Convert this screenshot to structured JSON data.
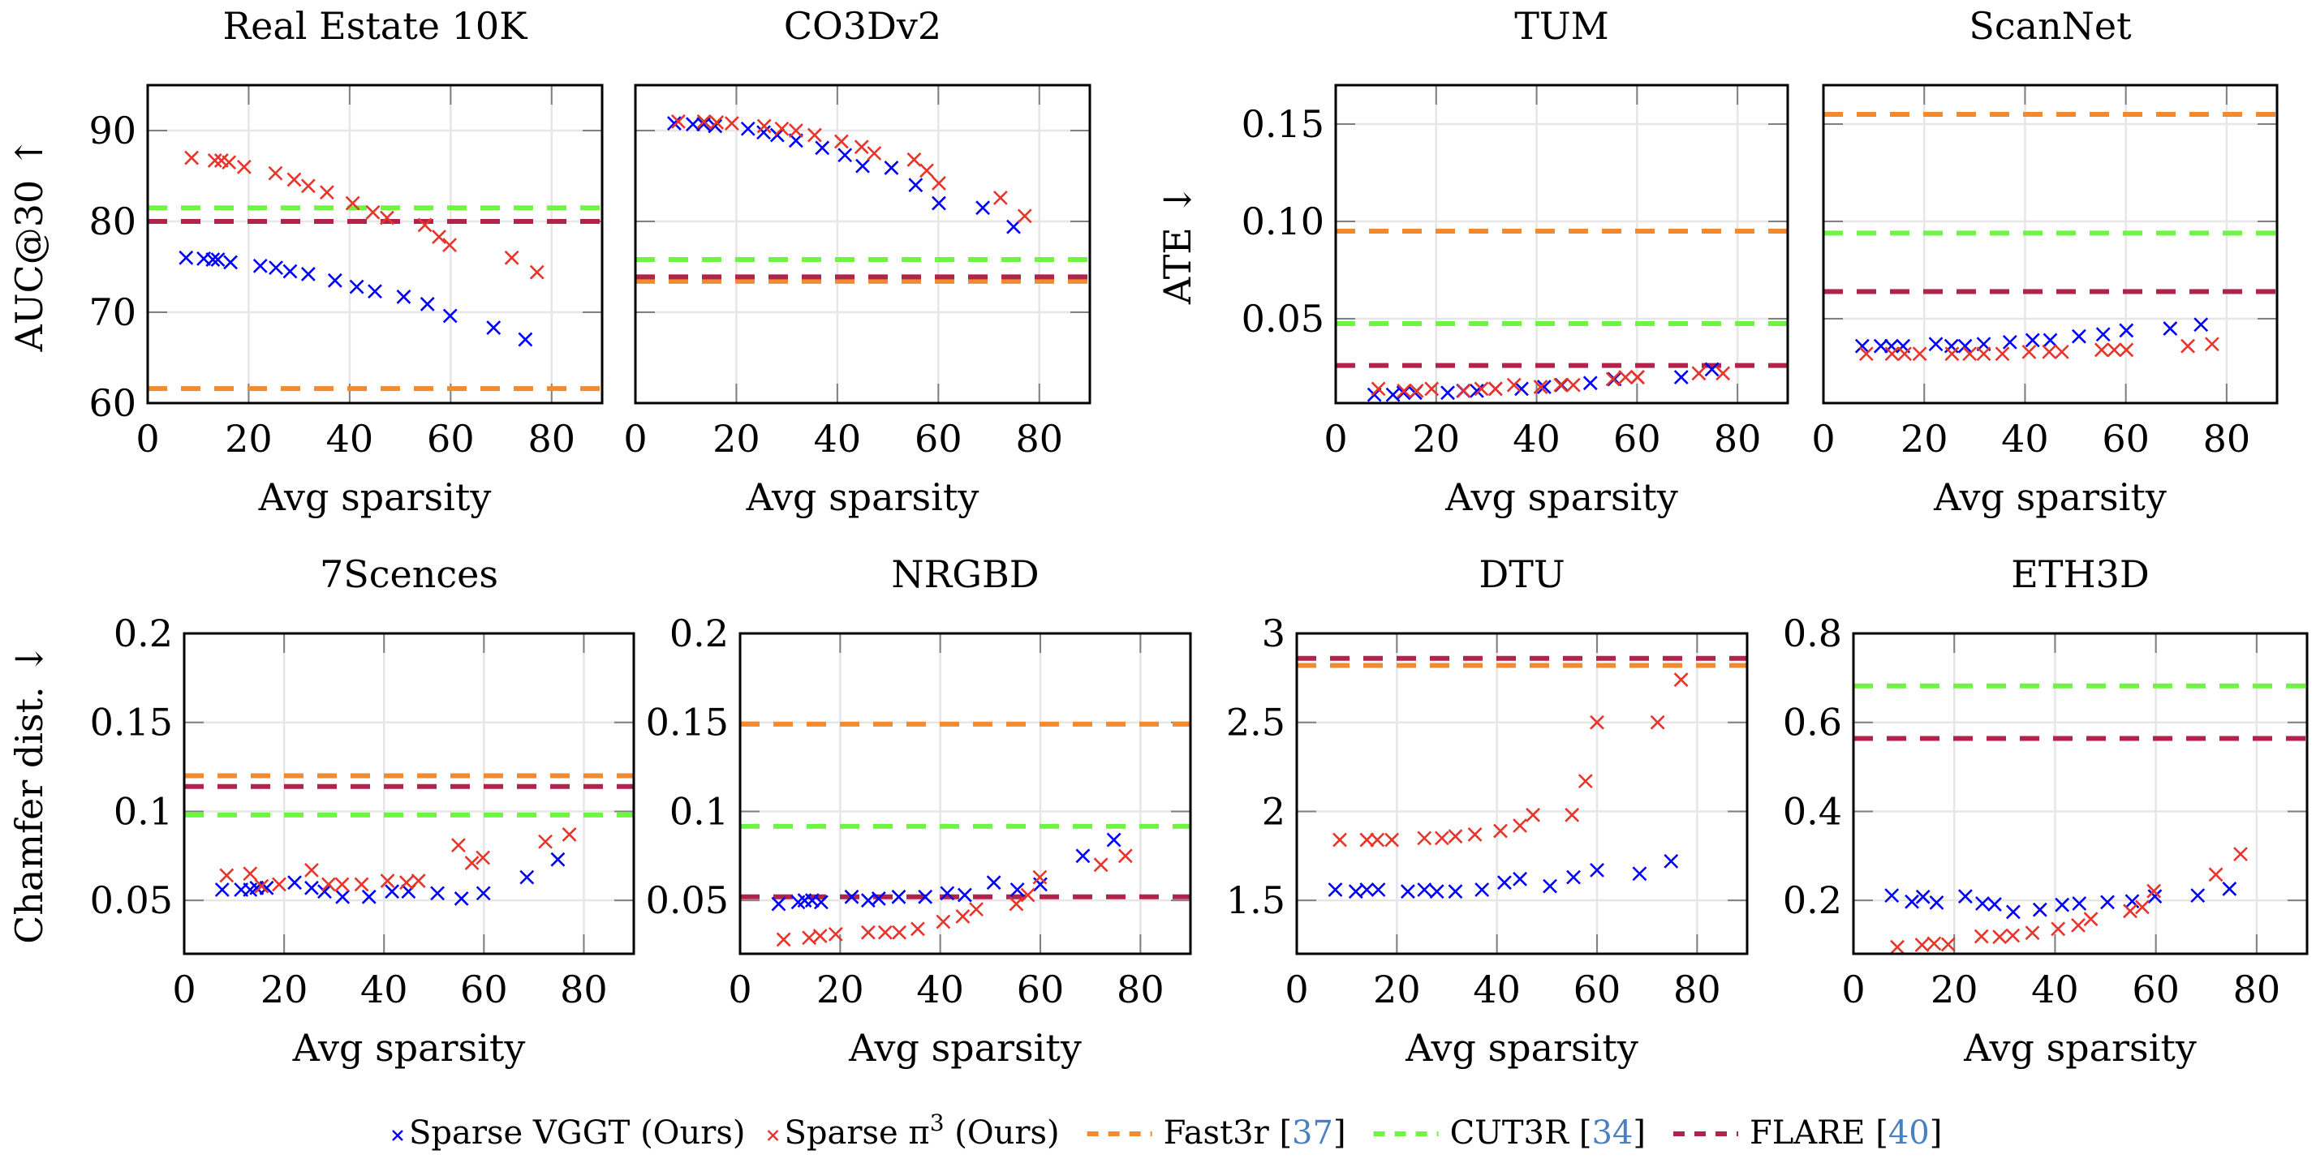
{
  "figure": {
    "legend": [
      {
        "label": "Sparse VGGT (Ours)",
        "kind": "marker",
        "color": "#0000ff",
        "series": "vggt"
      },
      {
        "label": "Sparse π",
        "sup": "3",
        "suffix": " (Ours)",
        "kind": "marker",
        "color": "#e8342a",
        "series": "pi3"
      },
      {
        "label": "Fast3r ",
        "cite": "37",
        "kind": "dash",
        "color": "#f28a30",
        "series": "fast3r"
      },
      {
        "label": "CUT3R ",
        "cite": "34",
        "kind": "dash",
        "color": "#6ef542",
        "series": "cut3r"
      },
      {
        "label": "FLARE ",
        "cite": "40",
        "kind": "dash",
        "color": "#b0234a",
        "series": "flare"
      }
    ],
    "colors": {
      "vggt": "#0000ff",
      "pi3": "#e8342a",
      "fast3r": "#f28a30",
      "cut3r": "#6ef542",
      "flare": "#b0234a"
    }
  },
  "chart_data": [
    {
      "type": "scatter",
      "title": "Real Estate 10K",
      "xlabel": "Avg sparsity",
      "ylabel": "AUC@30 ↑",
      "xlim": [
        0,
        90
      ],
      "ylim": [
        60,
        95
      ],
      "xticks": [
        0,
        20,
        40,
        60,
        80
      ],
      "yticks": [
        60,
        70,
        80,
        90
      ],
      "ytick_labels": [
        "60",
        "70",
        "80",
        "90"
      ],
      "grid": true,
      "series": [
        {
          "name": "Sparse VGGT (Ours)",
          "key": "vggt",
          "x": [
            7.6,
            11.1,
            12.9,
            13.9,
            16.4,
            22.3,
            25.4,
            28.2,
            31.8,
            37.1,
            41.4,
            45.0,
            50.7,
            55.4,
            59.9,
            68.5,
            74.8
          ],
          "y": [
            76.0,
            75.9,
            75.8,
            75.8,
            75.5,
            75.1,
            74.9,
            74.5,
            74.2,
            73.5,
            72.8,
            72.3,
            71.7,
            70.9,
            69.6,
            68.3,
            67.0
          ]
        },
        {
          "name": "Sparse π³ (Ours)",
          "key": "pi3",
          "x": [
            8.7,
            13.3,
            14.6,
            16.1,
            19.1,
            25.3,
            29.0,
            31.8,
            35.5,
            40.6,
            44.6,
            47.4,
            54.9,
            57.7,
            59.8,
            72.1,
            77.1
          ],
          "y": [
            87.0,
            86.7,
            86.7,
            86.5,
            86.0,
            85.3,
            84.6,
            83.9,
            83.2,
            82.0,
            81.0,
            80.4,
            79.6,
            78.3,
            77.4,
            76.0,
            74.4
          ]
        }
      ],
      "baselines": [
        {
          "name": "Fast3r [37]",
          "key": "fast3r",
          "y": 61.6
        },
        {
          "name": "CUT3R [34]",
          "key": "cut3r",
          "y": 81.5
        },
        {
          "name": "FLARE [40]",
          "key": "flare",
          "y": 80.0
        }
      ]
    },
    {
      "type": "scatter",
      "title": "CO3Dv2",
      "xlabel": "Avg sparsity",
      "ylabel": "",
      "xlim": [
        0,
        90
      ],
      "ylim": [
        60,
        95
      ],
      "xticks": [
        0,
        20,
        40,
        60,
        80
      ],
      "yticks": [
        60,
        70,
        80,
        90
      ],
      "ytick_labels": [],
      "grid": true,
      "series": [
        {
          "name": "Sparse VGGT (Ours)",
          "key": "vggt",
          "x": [
            7.7,
            11.4,
            13.5,
            15.8,
            22.3,
            25.4,
            28.1,
            31.8,
            37.0,
            41.5,
            45.0,
            50.7,
            55.5,
            60.1,
            68.8,
            74.9
          ],
          "y": [
            90.8,
            90.7,
            90.7,
            90.5,
            90.2,
            89.8,
            89.5,
            88.9,
            88.1,
            87.3,
            86.1,
            85.9,
            84.0,
            82.0,
            81.5,
            79.4
          ]
        },
        {
          "name": "Sparse π³ (Ours)",
          "key": "pi3",
          "x": [
            8.5,
            13.6,
            16.1,
            19.1,
            25.5,
            29.0,
            31.8,
            35.5,
            40.8,
            44.8,
            47.3,
            55.2,
            57.7,
            60.1,
            72.3,
            77.1
          ],
          "y": [
            91.0,
            91.0,
            90.9,
            90.8,
            90.5,
            90.2,
            90.0,
            89.5,
            88.8,
            88.2,
            87.5,
            86.8,
            85.6,
            84.2,
            82.6,
            80.6
          ]
        }
      ],
      "baselines": [
        {
          "name": "Fast3r [37]",
          "key": "fast3r",
          "y": 73.4
        },
        {
          "name": "CUT3R [34]",
          "key": "cut3r",
          "y": 75.8
        },
        {
          "name": "FLARE [40]",
          "key": "flare",
          "y": 73.9
        }
      ]
    },
    {
      "type": "scatter",
      "title": "TUM",
      "xlabel": "Avg sparsity",
      "ylabel": "ATE ↓",
      "xlim": [
        0,
        90
      ],
      "ylim": [
        0.0067,
        0.17
      ],
      "xticks": [
        0,
        20,
        40,
        60,
        80
      ],
      "yticks": [
        0.05,
        0.1,
        0.15
      ],
      "ytick_labels": [
        "0.05",
        "0.10",
        "0.15"
      ],
      "grid": true,
      "series": [
        {
          "name": "Sparse VGGT (Ours)",
          "key": "vggt",
          "x": [
            7.7,
            11.4,
            13.5,
            15.8,
            22.3,
            25.4,
            28.1,
            31.8,
            37.0,
            41.5,
            45.0,
            50.7,
            55.5,
            60.1,
            68.8,
            74.9
          ],
          "y": [
            0.011,
            0.011,
            0.012,
            0.012,
            0.012,
            0.013,
            0.013,
            0.014,
            0.014,
            0.015,
            0.016,
            0.017,
            0.019,
            0.02,
            0.02,
            0.024
          ]
        },
        {
          "name": "Sparse π³ (Ours)",
          "key": "pi3",
          "x": [
            8.5,
            13.6,
            16.1,
            19.1,
            25.5,
            29.0,
            31.8,
            35.5,
            40.8,
            44.8,
            47.3,
            55.2,
            57.7,
            60.1,
            72.3,
            77.1
          ],
          "y": [
            0.014,
            0.013,
            0.013,
            0.014,
            0.013,
            0.014,
            0.014,
            0.016,
            0.015,
            0.016,
            0.016,
            0.019,
            0.02,
            0.02,
            0.022,
            0.022
          ]
        }
      ],
      "baselines": [
        {
          "name": "Fast3r [37]",
          "key": "fast3r",
          "y": 0.095
        },
        {
          "name": "CUT3R [34]",
          "key": "cut3r",
          "y": 0.0475
        },
        {
          "name": "FLARE [40]",
          "key": "flare",
          "y": 0.026
        }
      ]
    },
    {
      "type": "scatter",
      "title": "ScanNet",
      "xlabel": "Avg sparsity",
      "ylabel": "",
      "xlim": [
        0,
        90
      ],
      "ylim": [
        0.0067,
        0.17
      ],
      "xticks": [
        0,
        20,
        40,
        60,
        80
      ],
      "yticks": [
        0.05,
        0.1,
        0.15
      ],
      "ytick_labels": [],
      "grid": true,
      "series": [
        {
          "name": "Sparse VGGT (Ours)",
          "key": "vggt",
          "x": [
            7.7,
            11.4,
            13.5,
            15.8,
            22.3,
            25.4,
            28.1,
            31.8,
            37.0,
            41.5,
            45.0,
            50.7,
            55.5,
            60.1,
            68.8,
            74.9
          ],
          "y": [
            0.036,
            0.036,
            0.036,
            0.036,
            0.037,
            0.036,
            0.036,
            0.037,
            0.038,
            0.039,
            0.039,
            0.041,
            0.042,
            0.044,
            0.045,
            0.047
          ]
        },
        {
          "name": "Sparse π³ (Ours)",
          "key": "pi3",
          "x": [
            8.5,
            13.6,
            16.1,
            19.1,
            25.5,
            29.0,
            31.8,
            35.5,
            40.8,
            44.8,
            47.3,
            55.2,
            57.7,
            60.1,
            72.3,
            77.1
          ],
          "y": [
            0.032,
            0.032,
            0.032,
            0.032,
            0.032,
            0.032,
            0.032,
            0.032,
            0.033,
            0.033,
            0.033,
            0.034,
            0.034,
            0.034,
            0.036,
            0.037
          ]
        }
      ],
      "baselines": [
        {
          "name": "Fast3r [37]",
          "key": "fast3r",
          "y": 0.155
        },
        {
          "name": "CUT3R [34]",
          "key": "cut3r",
          "y": 0.094
        },
        {
          "name": "FLARE [40]",
          "key": "flare",
          "y": 0.064
        }
      ]
    },
    {
      "type": "scatter",
      "title": "7Scences",
      "xlabel": "Avg sparsity",
      "ylabel": "Chamfer dist. ↓",
      "xlim": [
        0,
        90
      ],
      "ylim": [
        0.02,
        0.2
      ],
      "xticks": [
        0,
        20,
        40,
        60,
        80
      ],
      "yticks": [
        0.05,
        0.1,
        0.15,
        0.2
      ],
      "ytick_labels": [
        "0.05",
        "0.1",
        "0.15",
        "0.2"
      ],
      "grid": true,
      "series": [
        {
          "name": "Sparse VGGT (Ours)",
          "key": "vggt",
          "x": [
            7.6,
            11.4,
            13.2,
            14.5,
            16.5,
            22.1,
            25.5,
            28.1,
            31.7,
            37.0,
            41.6,
            44.9,
            50.7,
            55.5,
            59.9,
            68.6,
            74.8
          ],
          "y": [
            0.056,
            0.056,
            0.056,
            0.057,
            0.057,
            0.06,
            0.057,
            0.055,
            0.052,
            0.052,
            0.055,
            0.055,
            0.054,
            0.051,
            0.054,
            0.063,
            0.073
          ]
        },
        {
          "name": "Sparse π³ (Ours)",
          "key": "pi3",
          "x": [
            8.5,
            13.2,
            15.5,
            19.0,
            25.5,
            28.9,
            31.6,
            35.5,
            40.7,
            44.5,
            46.9,
            54.9,
            57.6,
            59.8,
            72.3,
            77.1
          ],
          "y": [
            0.064,
            0.065,
            0.058,
            0.059,
            0.067,
            0.059,
            0.059,
            0.059,
            0.061,
            0.06,
            0.061,
            0.081,
            0.071,
            0.074,
            0.083,
            0.087
          ]
        }
      ],
      "baselines": [
        {
          "name": "Fast3r [37]",
          "key": "fast3r",
          "y": 0.12
        },
        {
          "name": "CUT3R [34]",
          "key": "cut3r",
          "y": 0.098
        },
        {
          "name": "FLARE [40]",
          "key": "flare",
          "y": 0.114
        }
      ]
    },
    {
      "type": "scatter",
      "title": "NRGBD",
      "xlabel": "Avg sparsity",
      "ylabel": "",
      "xlim": [
        0,
        90
      ],
      "ylim": [
        0.02,
        0.2
      ],
      "xticks": [
        0,
        20,
        40,
        60,
        80
      ],
      "yticks": [
        0.05,
        0.1,
        0.15,
        0.2
      ],
      "ytick_labels": [
        "0.05",
        "0.1",
        "0.15",
        "0.2"
      ],
      "grid": true,
      "series": [
        {
          "name": "Sparse VGGT (Ours)",
          "key": "vggt",
          "x": [
            7.7,
            11.6,
            12.9,
            14.4,
            16.2,
            22.3,
            25.6,
            27.7,
            31.7,
            37.0,
            41.4,
            44.9,
            50.7,
            55.4,
            60.0,
            68.5,
            74.7
          ],
          "y": [
            0.048,
            0.049,
            0.05,
            0.05,
            0.049,
            0.052,
            0.05,
            0.051,
            0.052,
            0.052,
            0.054,
            0.053,
            0.06,
            0.056,
            0.059,
            0.075,
            0.084
          ]
        },
        {
          "name": "Sparse π³ (Ours)",
          "key": "pi3",
          "x": [
            8.7,
            13.8,
            16.0,
            19.1,
            25.6,
            29.0,
            31.8,
            35.5,
            40.6,
            44.5,
            47.2,
            55.2,
            57.5,
            59.9,
            72.1,
            77.0
          ],
          "y": [
            0.028,
            0.029,
            0.03,
            0.031,
            0.032,
            0.032,
            0.032,
            0.034,
            0.038,
            0.041,
            0.045,
            0.048,
            0.053,
            0.063,
            0.07,
            0.075
          ]
        }
      ],
      "baselines": [
        {
          "name": "Fast3r [37]",
          "key": "fast3r",
          "y": 0.149
        },
        {
          "name": "CUT3R [34]",
          "key": "cut3r",
          "y": 0.0916
        },
        {
          "name": "FLARE [40]",
          "key": "flare",
          "y": 0.052
        }
      ]
    },
    {
      "type": "scatter",
      "title": "DTU",
      "xlabel": "Avg sparsity",
      "ylabel": "",
      "xlim": [
        0,
        90
      ],
      "ylim": [
        1.2,
        3.0
      ],
      "xticks": [
        0,
        20,
        40,
        60,
        80
      ],
      "yticks": [
        1.5,
        2,
        2.5,
        3
      ],
      "ytick_labels": [
        "1.5",
        "2",
        "2.5",
        "3"
      ],
      "grid": true,
      "series": [
        {
          "name": "Sparse VGGT (Ours)",
          "key": "vggt",
          "x": [
            7.7,
            11.8,
            14.0,
            16.3,
            22.2,
            25.5,
            28.0,
            31.7,
            37.0,
            41.5,
            44.6,
            50.6,
            55.3,
            60.0,
            68.5,
            74.8
          ],
          "y": [
            1.56,
            1.55,
            1.56,
            1.56,
            1.55,
            1.56,
            1.55,
            1.55,
            1.56,
            1.6,
            1.62,
            1.58,
            1.63,
            1.67,
            1.65,
            1.72
          ]
        },
        {
          "name": "Sparse π³ (Ours)",
          "key": "pi3",
          "x": [
            8.6,
            14.0,
            16.1,
            19.0,
            25.5,
            29.0,
            31.7,
            35.6,
            40.7,
            44.6,
            47.2,
            55.0,
            57.7,
            60.0,
            72.1,
            76.8
          ],
          "y": [
            1.84,
            1.84,
            1.84,
            1.84,
            1.85,
            1.85,
            1.86,
            1.87,
            1.89,
            1.92,
            1.98,
            1.98,
            2.17,
            2.5,
            2.5,
            2.74
          ]
        }
      ],
      "baselines": [
        {
          "name": "Fast3r [37]",
          "key": "fast3r",
          "y": 2.82
        },
        {
          "name": "FLARE [40]",
          "key": "flare",
          "y": 2.86
        }
      ]
    },
    {
      "type": "scatter",
      "title": "ETH3D",
      "xlabel": "Avg sparsity",
      "ylabel": "",
      "xlim": [
        0,
        90
      ],
      "ylim": [
        0.08,
        0.8
      ],
      "xticks": [
        0,
        20,
        40,
        60,
        80
      ],
      "yticks": [
        0.2,
        0.4,
        0.6,
        0.8
      ],
      "ytick_labels": [
        "0.2",
        "0.4",
        "0.6",
        "0.8"
      ],
      "grid": true,
      "series": [
        {
          "name": "Sparse VGGT (Ours)",
          "key": "vggt",
          "x": [
            7.6,
            11.6,
            13.8,
            16.5,
            22.2,
            25.6,
            28.0,
            31.7,
            37.0,
            41.4,
            44.8,
            50.4,
            55.3,
            59.8,
            68.3,
            74.6
          ],
          "y": [
            0.211,
            0.197,
            0.208,
            0.195,
            0.209,
            0.193,
            0.191,
            0.174,
            0.179,
            0.19,
            0.193,
            0.196,
            0.198,
            0.209,
            0.211,
            0.226
          ]
        },
        {
          "name": "Sparse π³ (Ours)",
          "key": "pi3",
          "x": [
            8.7,
            13.6,
            16.0,
            18.8,
            25.4,
            29.0,
            31.6,
            35.5,
            40.6,
            44.6,
            47.1,
            54.9,
            57.3,
            59.6,
            71.9,
            76.8
          ],
          "y": [
            0.095,
            0.1,
            0.103,
            0.101,
            0.119,
            0.118,
            0.121,
            0.127,
            0.136,
            0.144,
            0.158,
            0.176,
            0.185,
            0.221,
            0.258,
            0.304
          ]
        }
      ],
      "baselines": [
        {
          "name": "CUT3R [34]",
          "key": "cut3r",
          "y": 0.682
        },
        {
          "name": "FLARE [40]",
          "key": "flare",
          "y": 0.564
        }
      ]
    }
  ]
}
